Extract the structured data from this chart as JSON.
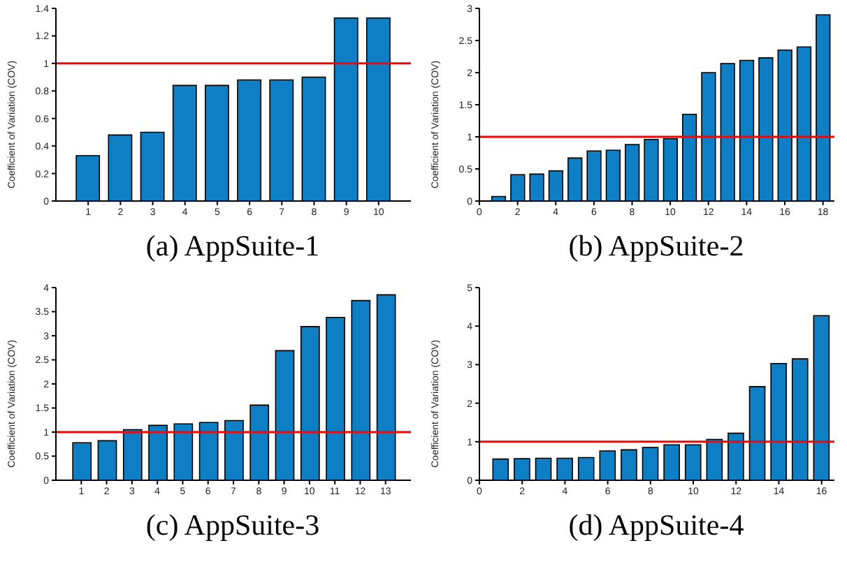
{
  "chart_data": [
    {
      "type": "bar",
      "title": "(a) AppSuite-1",
      "ylabel": "Coefficient of Variation (COV)",
      "x": [
        1,
        2,
        3,
        4,
        5,
        6,
        7,
        8,
        9,
        10
      ],
      "values": [
        0.33,
        0.48,
        0.5,
        0.84,
        0.84,
        0.88,
        0.88,
        0.9,
        1.33,
        1.33
      ],
      "color": "#0e7fc4",
      "xlim": [
        0,
        11
      ],
      "xticks": [
        1,
        2,
        3,
        4,
        5,
        6,
        7,
        8,
        9,
        10
      ],
      "ylim": [
        0,
        1.4
      ],
      "yticks": [
        0,
        0.2,
        0.4,
        0.6,
        0.8,
        1,
        1.2,
        1.4
      ],
      "ref_lines": [
        {
          "axis": "y",
          "value": 1,
          "color": "#ff0000"
        }
      ],
      "grid": false,
      "legend": false
    },
    {
      "type": "bar",
      "title": "(b) AppSuite-2",
      "ylabel": "Coefficient of Variation (COV)",
      "x": [
        1,
        2,
        3,
        4,
        5,
        6,
        7,
        8,
        9,
        10,
        11,
        12,
        13,
        14,
        15,
        16,
        17,
        18
      ],
      "values": [
        0.07,
        0.41,
        0.42,
        0.47,
        0.67,
        0.78,
        0.79,
        0.88,
        0.96,
        0.97,
        1.35,
        2.0,
        2.14,
        2.19,
        2.23,
        2.35,
        2.4,
        2.9
      ],
      "color": "#0e7fc4",
      "xlim": [
        0,
        18.6
      ],
      "xticks": [
        0,
        2,
        4,
        6,
        8,
        10,
        12,
        14,
        16,
        18
      ],
      "ylim": [
        0,
        3
      ],
      "yticks": [
        0,
        0.5,
        1,
        1.5,
        2,
        2.5,
        3
      ],
      "ref_lines": [
        {
          "axis": "y",
          "value": 1,
          "color": "#ff0000"
        }
      ],
      "grid": false,
      "legend": false
    },
    {
      "type": "bar",
      "title": "(c) AppSuite-3",
      "ylabel": "Coefficient of Variation (COV)",
      "x": [
        1,
        2,
        3,
        4,
        5,
        6,
        7,
        8,
        9,
        10,
        11,
        12,
        13
      ],
      "values": [
        0.78,
        0.82,
        1.05,
        1.14,
        1.17,
        1.2,
        1.24,
        1.56,
        2.69,
        3.19,
        3.38,
        3.73,
        3.85
      ],
      "color": "#0e7fc4",
      "xlim": [
        0,
        14
      ],
      "xticks": [
        1,
        2,
        3,
        4,
        5,
        6,
        7,
        8,
        9,
        10,
        11,
        12,
        13
      ],
      "ylim": [
        0,
        4
      ],
      "yticks": [
        0,
        0.5,
        1,
        1.5,
        2,
        2.5,
        3,
        3.5,
        4
      ],
      "ref_lines": [
        {
          "axis": "y",
          "value": 1,
          "color": "#ff0000"
        }
      ],
      "grid": false,
      "legend": false
    },
    {
      "type": "bar",
      "title": "(d) AppSuite-4",
      "ylabel": "Coefficient of Variation (COV)",
      "x": [
        1,
        2,
        3,
        4,
        5,
        6,
        7,
        8,
        9,
        10,
        11,
        12,
        13,
        14,
        15,
        16
      ],
      "values": [
        0.55,
        0.56,
        0.57,
        0.57,
        0.59,
        0.76,
        0.79,
        0.85,
        0.92,
        0.92,
        1.06,
        1.22,
        2.43,
        3.03,
        3.15,
        4.27
      ],
      "color": "#0e7fc4",
      "xlim": [
        0,
        16.6
      ],
      "xticks": [
        0,
        2,
        4,
        6,
        8,
        10,
        12,
        14,
        16
      ],
      "ylim": [
        0,
        5
      ],
      "yticks": [
        0,
        1,
        2,
        3,
        4,
        5
      ],
      "ref_lines": [
        {
          "axis": "y",
          "value": 1,
          "color": "#ff0000"
        }
      ],
      "grid": false,
      "legend": false
    }
  ]
}
